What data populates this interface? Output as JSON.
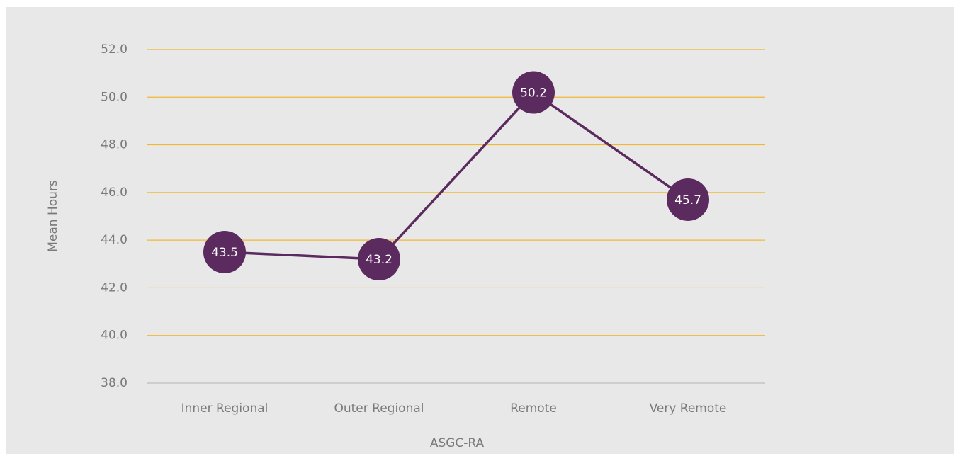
{
  "chart_data": {
    "type": "line",
    "x_label": "ASGC-RA",
    "y_label": "Mean Hours",
    "categories": [
      "Inner Regional",
      "Outer Regional",
      "Remote",
      "Very Remote"
    ],
    "series": [
      {
        "name": "Mean Hours",
        "color": "#5b2a5e",
        "values": [
          43.5,
          43.2,
          50.2,
          45.7
        ]
      }
    ],
    "ylim": [
      38,
      52
    ],
    "yticks": [
      {
        "value": 38,
        "label": "38.0"
      },
      {
        "value": 40,
        "label": "40.0"
      },
      {
        "value": 42,
        "label": "42.0"
      },
      {
        "value": 44,
        "label": "44.0"
      },
      {
        "value": 46,
        "label": "46.0"
      },
      {
        "value": 48,
        "label": "48.0"
      },
      {
        "value": 50,
        "label": "50.0"
      },
      {
        "value": 52,
        "label": "52.0"
      }
    ],
    "grid": true,
    "grid_color": "#f2b731"
  }
}
